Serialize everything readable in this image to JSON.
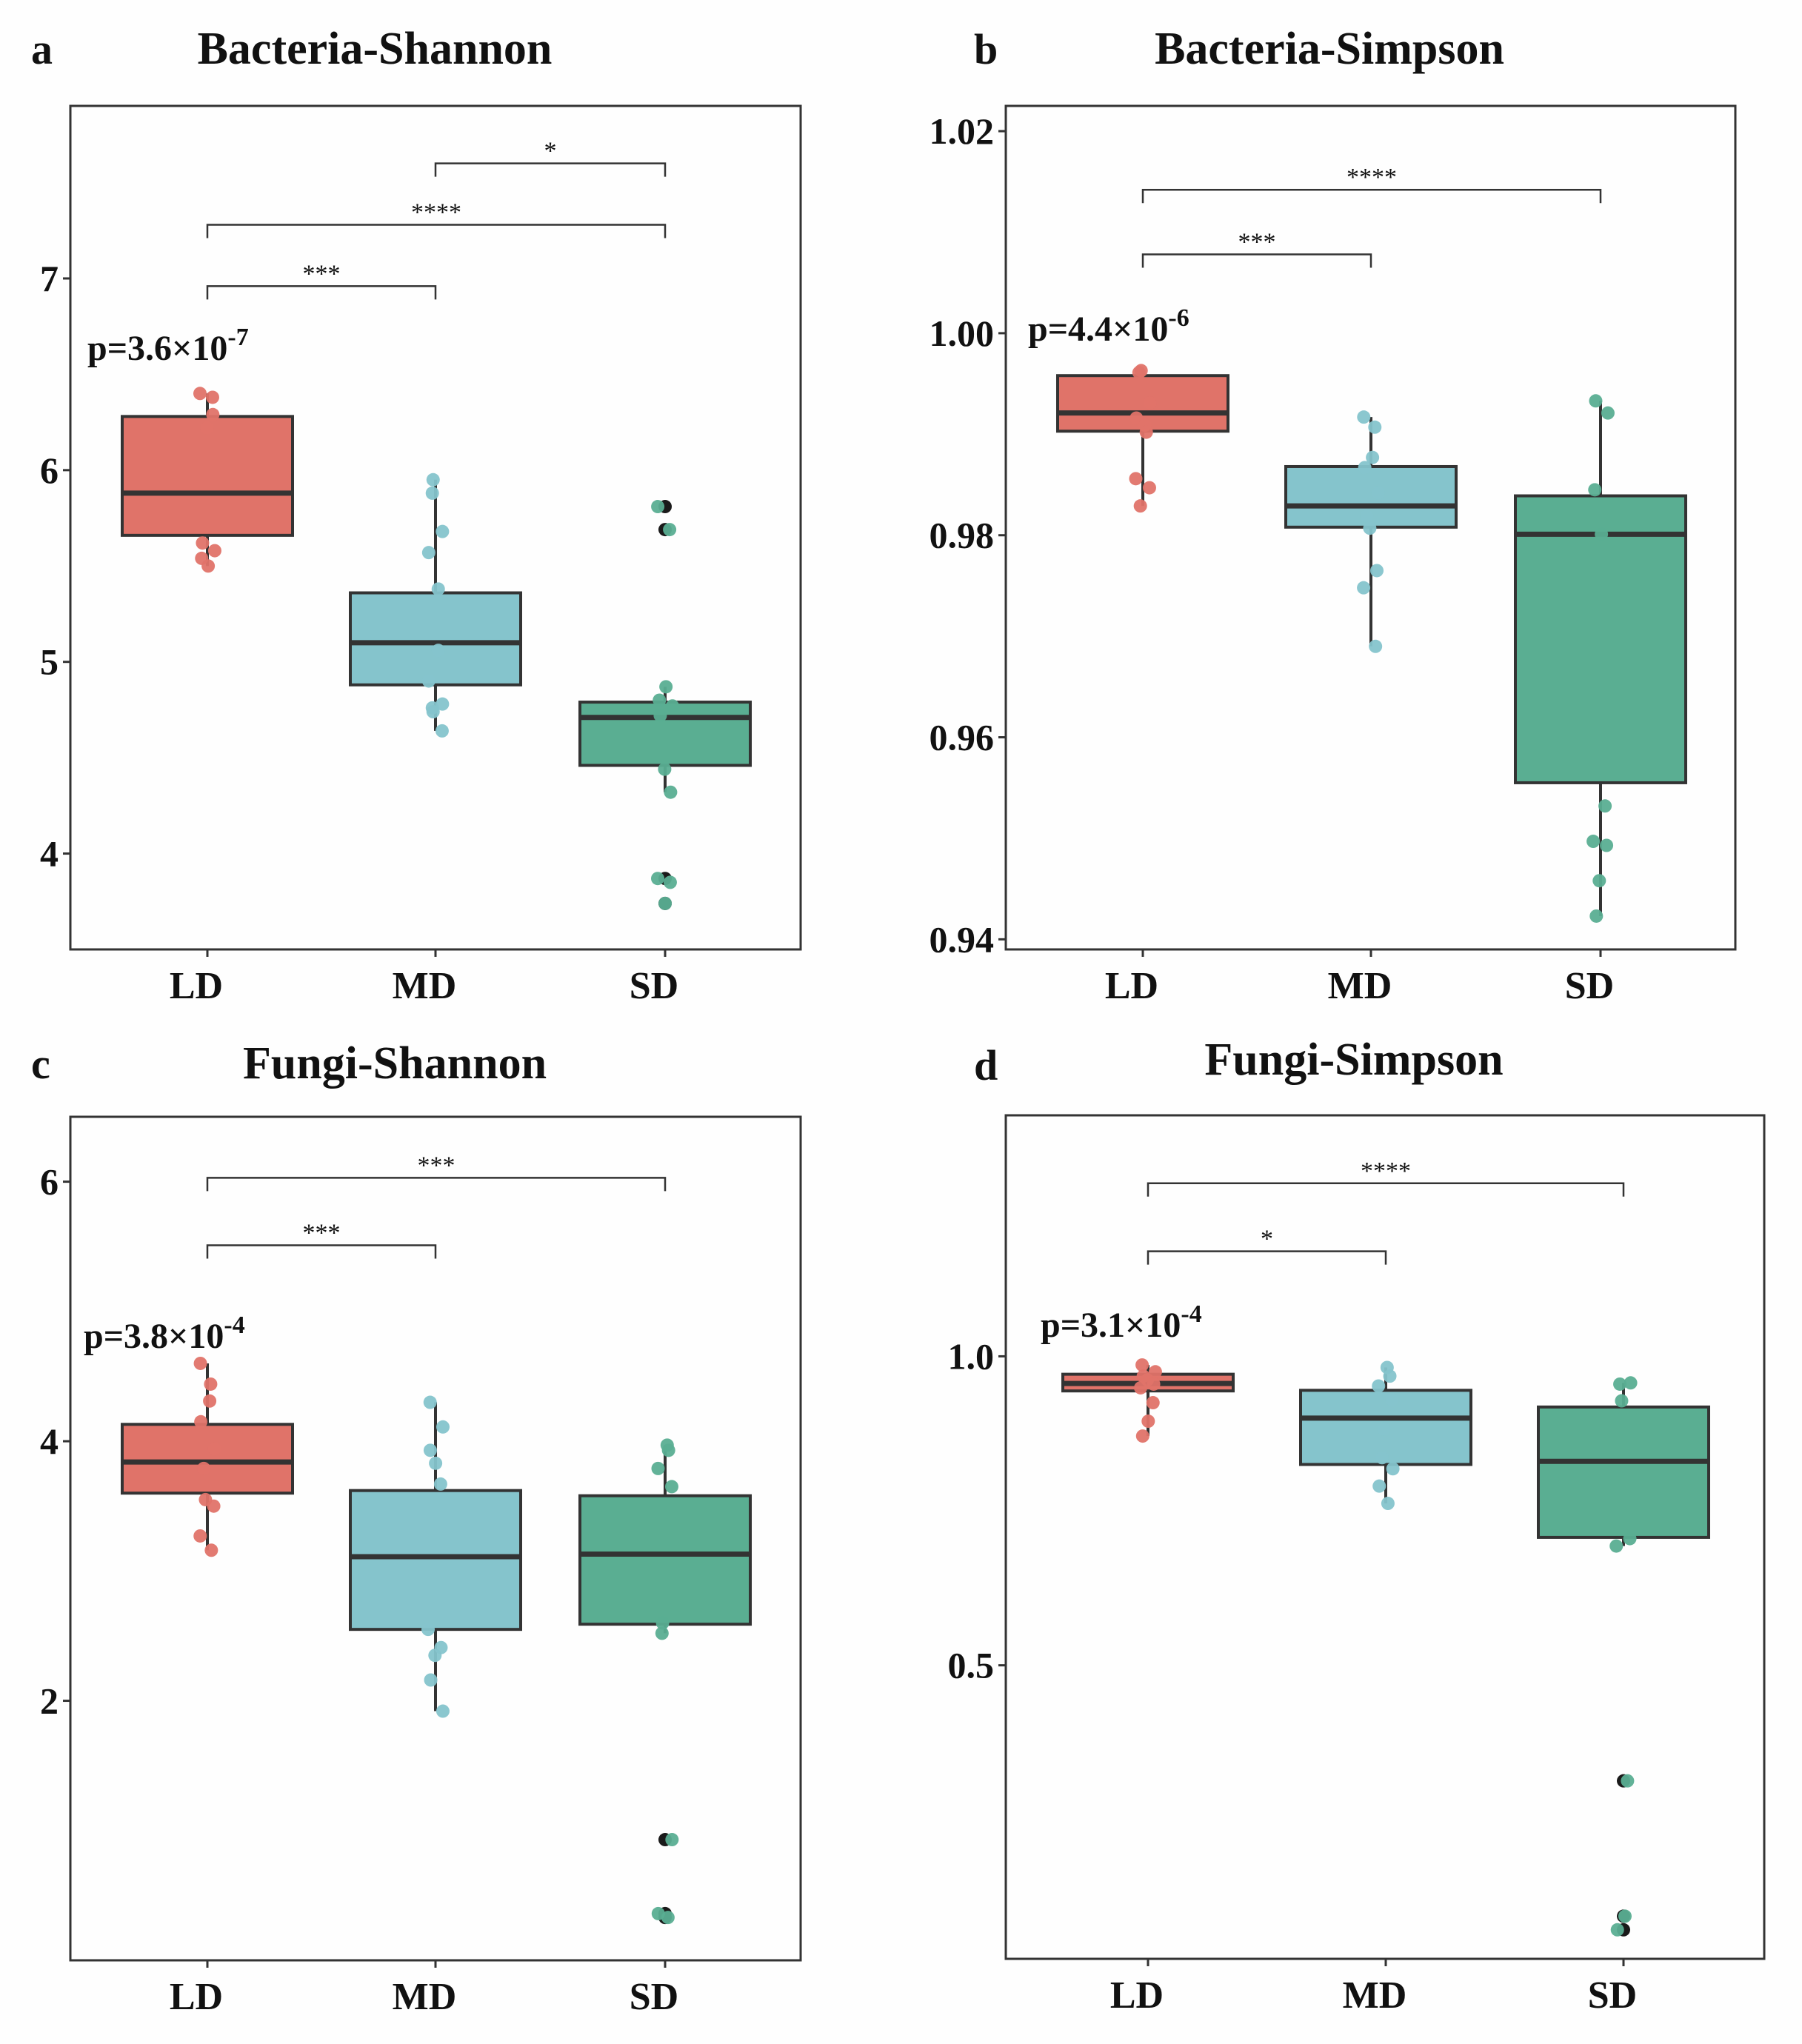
{
  "chart_data": [
    {
      "type": "box",
      "panel": "a",
      "title": "Bacteria-Shannon",
      "ylim": [
        3.5,
        7.9
      ],
      "yticks": [
        4,
        5,
        6,
        7
      ],
      "ytick_labels": [
        "4",
        "5",
        "6",
        "7"
      ],
      "categories": [
        "LD",
        "MD",
        "SD"
      ],
      "pvalue": {
        "base": "p=3.6×10",
        "exp": "-7"
      },
      "boxes": [
        {
          "name": "LD",
          "q1": 5.66,
          "median": 5.88,
          "q3": 6.28,
          "whisker_low": 5.5,
          "whisker_high": 6.4,
          "outliers": []
        },
        {
          "name": "MD",
          "q1": 4.88,
          "median": 5.1,
          "q3": 5.36,
          "whisker_low": 4.64,
          "whisker_high": 5.95,
          "outliers": []
        },
        {
          "name": "SD",
          "q1": 4.46,
          "median": 4.71,
          "q3": 4.79,
          "whisker_low": 4.32,
          "whisker_high": 4.87,
          "outliers": [
            5.81,
            5.69,
            3.87,
            3.74
          ]
        }
      ],
      "points": [
        [
          6.38,
          6.4,
          6.29,
          6.22,
          5.62,
          5.58,
          5.54,
          5.5
        ],
        [
          5.95,
          5.88,
          5.68,
          5.57,
          5.38,
          5.06,
          4.9,
          4.78,
          4.76,
          4.74,
          4.64
        ],
        [
          5.81,
          5.69,
          4.87,
          4.8,
          4.77,
          4.72,
          4.44,
          4.32,
          3.87,
          3.85,
          3.74
        ]
      ],
      "comparisons": [
        {
          "from": "MD",
          "to": "SD",
          "y": 7.6,
          "label": "*"
        },
        {
          "from": "LD",
          "to": "SD",
          "y": 7.28,
          "label": "****"
        },
        {
          "from": "LD",
          "to": "MD",
          "y": 6.96,
          "label": "***"
        }
      ]
    },
    {
      "type": "box",
      "panel": "b",
      "title": "Bacteria-Simpson",
      "ylim": [
        0.939,
        1.0225
      ],
      "yticks": [
        0.94,
        0.96,
        0.98,
        1.0,
        1.02
      ],
      "ytick_labels": [
        "0.94",
        "0.96",
        "0.98",
        "1.00",
        "1.02"
      ],
      "categories": [
        "LD",
        "MD",
        "SD"
      ],
      "pvalue": {
        "base": "p=4.4×10",
        "exp": "-6"
      },
      "boxes": [
        {
          "name": "LD",
          "q1": 0.9903,
          "median": 0.9921,
          "q3": 0.9958,
          "whisker_low": 0.9829,
          "whisker_high": 0.9963,
          "outliers": []
        },
        {
          "name": "MD",
          "q1": 0.9808,
          "median": 0.9829,
          "q3": 0.9868,
          "whisker_low": 0.969,
          "whisker_high": 0.9917,
          "outliers": []
        },
        {
          "name": "SD",
          "q1": 0.9555,
          "median": 0.9801,
          "q3": 0.9839,
          "whisker_low": 0.9423,
          "whisker_high": 0.9933,
          "outliers": []
        }
      ],
      "points": [
        [
          0.9963,
          0.9961,
          0.9931,
          0.9916,
          0.9909,
          0.9902,
          0.9856,
          0.9847,
          0.9829
        ],
        [
          0.9917,
          0.9907,
          0.9877,
          0.9867,
          0.9842,
          0.9819,
          0.9807,
          0.9765,
          0.9748,
          0.969
        ],
        [
          0.9933,
          0.9921,
          0.9845,
          0.9801,
          0.9532,
          0.9497,
          0.9493,
          0.9458,
          0.9423
        ]
      ],
      "comparisons": [
        {
          "from": "LD",
          "to": "SD",
          "y": 1.0142,
          "label": "****"
        },
        {
          "from": "LD",
          "to": "MD",
          "y": 1.0078,
          "label": "***"
        }
      ]
    },
    {
      "type": "box",
      "panel": "c",
      "title": "Fungi-Shannon",
      "ylim": [
        0.0,
        6.5
      ],
      "yticks": [
        2,
        4,
        6
      ],
      "ytick_labels": [
        "2",
        "4",
        "6"
      ],
      "categories": [
        "LD",
        "MD",
        "SD"
      ],
      "pvalue": {
        "base": "p=3.8×10",
        "exp": "-4"
      },
      "boxes": [
        {
          "name": "LD",
          "q1": 3.6,
          "median": 3.84,
          "q3": 4.13,
          "whisker_low": 3.16,
          "whisker_high": 4.6,
          "outliers": []
        },
        {
          "name": "MD",
          "q1": 2.55,
          "median": 3.11,
          "q3": 3.62,
          "whisker_low": 1.92,
          "whisker_high": 4.3,
          "outliers": []
        },
        {
          "name": "SD",
          "q1": 2.59,
          "median": 3.13,
          "q3": 3.58,
          "whisker_low": 2.52,
          "whisker_high": 3.97,
          "outliers": [
            0.93,
            0.36,
            0.33
          ]
        }
      ],
      "points": [
        [
          4.6,
          4.44,
          4.31,
          4.15,
          3.94,
          3.79,
          3.55,
          3.5,
          3.27,
          3.16
        ],
        [
          4.3,
          4.11,
          3.93,
          3.83,
          3.67,
          2.55,
          2.41,
          2.35,
          2.16,
          1.92
        ],
        [
          3.97,
          3.93,
          3.79,
          3.65,
          2.6,
          2.52,
          0.93,
          0.36,
          0.33
        ]
      ],
      "comparisons": [
        {
          "from": "LD",
          "to": "SD",
          "y": 6.03,
          "label": "***"
        },
        {
          "from": "LD",
          "to": "MD",
          "y": 5.51,
          "label": "***"
        }
      ]
    },
    {
      "type": "box",
      "panel": "d",
      "title": "Fungi-Simpson",
      "ylim": [
        0.025,
        1.39
      ],
      "yticks": [
        0.5,
        1.0
      ],
      "ytick_labels": [
        "0.5",
        "1.0"
      ],
      "categories": [
        "LD",
        "MD",
        "SD"
      ],
      "pvalue": {
        "base": "p=3.1×10",
        "exp": "-4"
      },
      "boxes": [
        {
          "name": "LD",
          "q1": 0.944,
          "median": 0.956,
          "q3": 0.971,
          "whisker_low": 0.871,
          "whisker_high": 0.986,
          "outliers": []
        },
        {
          "name": "MD",
          "q1": 0.825,
          "median": 0.9,
          "q3": 0.945,
          "whisker_low": 0.762,
          "whisker_high": 0.982,
          "outliers": []
        },
        {
          "name": "SD",
          "q1": 0.707,
          "median": 0.83,
          "q3": 0.918,
          "whisker_low": 0.693,
          "whisker_high": 0.957,
          "outliers": [
            0.313,
            0.094,
            0.072
          ]
        }
      ],
      "points": [
        [
          0.986,
          0.975,
          0.968,
          0.962,
          0.955,
          0.949,
          0.925,
          0.895,
          0.871
        ],
        [
          0.982,
          0.968,
          0.952,
          0.93,
          0.882,
          0.836,
          0.818,
          0.79,
          0.762
        ],
        [
          0.957,
          0.955,
          0.928,
          0.705,
          0.693,
          0.313,
          0.094,
          0.072
        ]
      ],
      "comparisons": [
        {
          "from": "LD",
          "to": "SD",
          "y": 1.28,
          "label": "****"
        },
        {
          "from": "LD",
          "to": "MD",
          "y": 1.17,
          "label": "*"
        }
      ]
    }
  ],
  "colors": {
    "LD": "#e07369",
    "MD": "#85c4cc",
    "SD": "#5aae92",
    "outlier": "#1a1a1a",
    "axis": "#333333"
  }
}
